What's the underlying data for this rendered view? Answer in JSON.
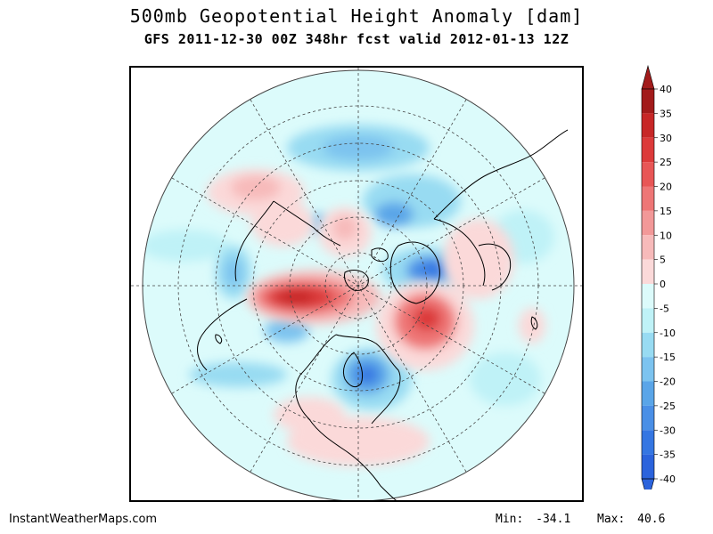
{
  "header": {
    "title": "500mb Geopotential Height Anomaly [dam]",
    "subtitle": "GFS 2011-12-30 00Z 348hr fcst valid 2012-01-13 12Z"
  },
  "colorbar": {
    "labels": [
      "40",
      "35",
      "30",
      "25",
      "20",
      "15",
      "10",
      "5",
      "0",
      "-5",
      "-10",
      "-15",
      "-20",
      "-25",
      "-30",
      "-35",
      "-40"
    ],
    "colors": [
      "#a21b1b",
      "#c72727",
      "#dc3a3a",
      "#e85656",
      "#ee7676",
      "#f29898",
      "#f7baba",
      "#fbd9d9",
      "#dcfbfb",
      "#bff2f7",
      "#98dbf2",
      "#7cc3ef",
      "#5aa5e8",
      "#4a8fe6",
      "#3576e2",
      "#2b63dc"
    ],
    "top_color": "#a21b1b",
    "bottom_color": "#2b63dc"
  },
  "footer": {
    "credit": "InstantWeatherMaps.com",
    "min_label": "Min:",
    "min_value": "-34.1",
    "max_label": "Max:",
    "max_value": "40.6"
  },
  "map": {
    "projection": "polar stereographic (north pole)",
    "features": [
      "coastlines",
      "latitude circles",
      "meridians",
      "anomaly shading"
    ]
  }
}
